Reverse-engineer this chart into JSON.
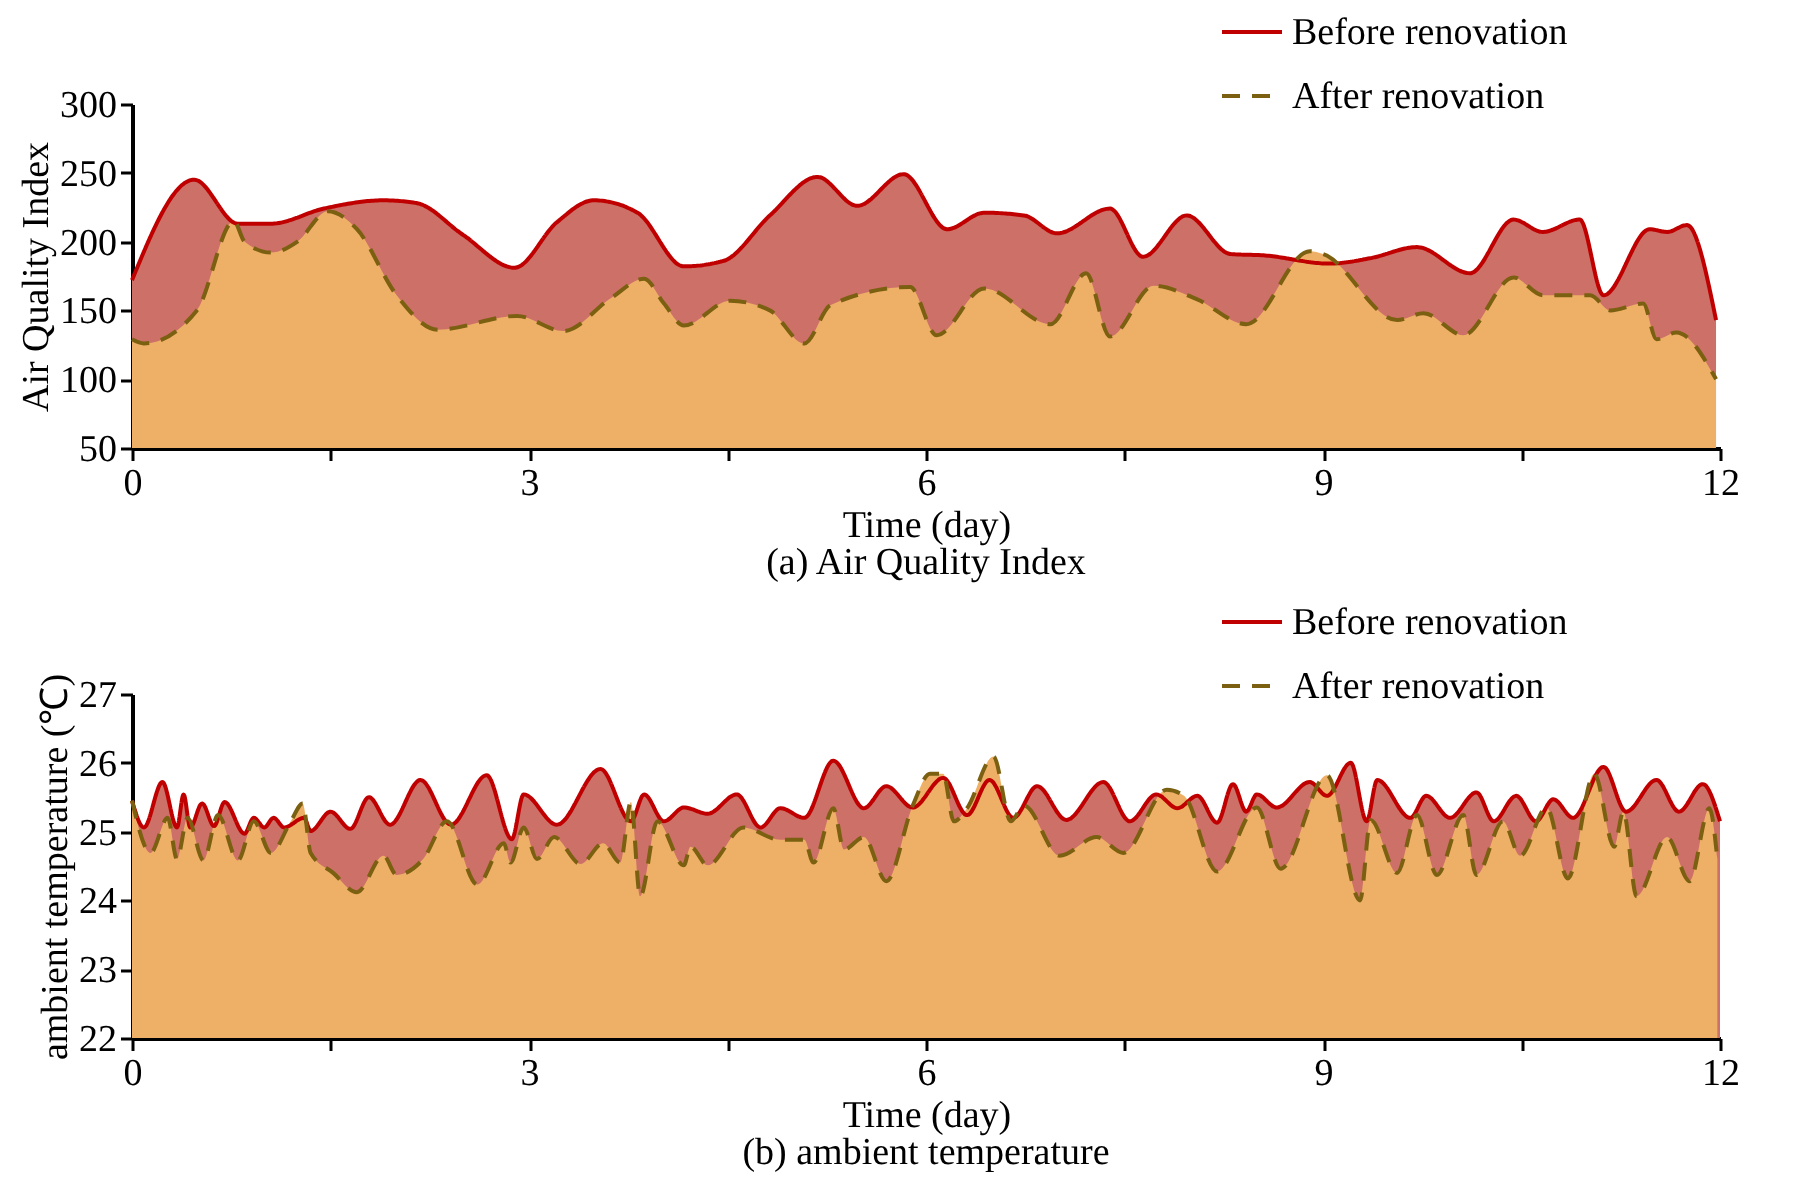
{
  "chart_data": [
    {
      "type": "area",
      "title": "(a) Air Quality Index",
      "xlabel": "Time (day)",
      "ylabel": "Air Quality Index",
      "xlim": [
        0,
        12
      ],
      "xticks": [
        0,
        {
          "value": 1.5,
          "label": null
        },
        3,
        {
          "value": 4.5,
          "label": null
        },
        6,
        {
          "value": 7.5,
          "label": null
        },
        9,
        {
          "value": 10.5,
          "label": null
        },
        12
      ],
      "ylim": [
        50,
        300
      ],
      "yticks": [
        50,
        100,
        150,
        200,
        250,
        300
      ],
      "grid": false,
      "legend": "top right",
      "series": [
        {
          "name": "Before renovation",
          "color": "#c00000",
          "line_style": "solid",
          "x": [
            0,
            0.47,
            0.8,
            1.05,
            1.45,
            1.9,
            2.15,
            2.5,
            2.89,
            3.21,
            3.49,
            3.82,
            4.17,
            4.47,
            4.82,
            5.18,
            5.48,
            5.83,
            6.16,
            6.44,
            6.74,
            6.99,
            7.39,
            7.64,
            7.97,
            8.3,
            8.55,
            9.05,
            9.36,
            9.71,
            10.11,
            10.44,
            10.66,
            10.94,
            11.12,
            11.47,
            11.6,
            11.75,
            11.97
          ],
          "values": [
            172,
            245,
            213,
            213,
            224,
            230,
            228,
            205,
            181,
            214,
            230,
            221,
            182,
            186,
            219,
            247,
            226,
            249,
            209,
            221,
            219,
            206,
            224,
            189,
            219,
            191,
            190,
            184,
            188,
            196,
            177,
            216,
            207,
            216,
            161,
            209,
            207,
            212,
            143
          ]
        },
        {
          "name": "After renovation",
          "color": "#7a6010",
          "line_style": "dashed",
          "x": [
            0,
            0.09,
            0.49,
            0.77,
            0.85,
            1.05,
            1.25,
            1.48,
            1.7,
            2.0,
            2.31,
            2.91,
            3.26,
            3.62,
            3.87,
            4.02,
            4.17,
            4.52,
            4.82,
            5.08,
            5.28,
            5.88,
            6.08,
            6.44,
            6.94,
            7.21,
            7.39,
            7.72,
            8.05,
            8.42,
            8.9,
            9.0,
            9.56,
            9.76,
            10.06,
            10.44,
            10.66,
            11.02,
            11.17,
            11.42,
            11.52,
            11.67,
            11.97
          ],
          "values": [
            129,
            126,
            150,
            215,
            200,
            192,
            200,
            222,
            209,
            161,
            136,
            146,
            135,
            159,
            173,
            155,
            139,
            157,
            150,
            126,
            154,
            167,
            132,
            166,
            140,
            177,
            131,
            168,
            158,
            140,
            193,
            191,
            143,
            148,
            132,
            174,
            161,
            161,
            150,
            155,
            129,
            134,
            100
          ]
        }
      ]
    },
    {
      "type": "area",
      "title": "(b) ambient temperature",
      "xlabel": "Time (day)",
      "ylabel": "ambient temperature (℃)",
      "xlim": [
        0,
        12
      ],
      "xticks": [
        0,
        {
          "value": 1.5,
          "label": null
        },
        3,
        {
          "value": 4.5,
          "label": null
        },
        6,
        {
          "value": 7.5,
          "label": null
        },
        9,
        {
          "value": 10.5,
          "label": null
        },
        12
      ],
      "ylim": [
        22,
        27
      ],
      "yticks": [
        22,
        23,
        24,
        25,
        26,
        27
      ],
      "grid": false,
      "legend": "top right",
      "series": [
        {
          "name": "Before renovation",
          "color": "#c00000",
          "line_style": "solid",
          "x": [
            0,
            0.09,
            0.23,
            0.34,
            0.39,
            0.44,
            0.53,
            0.62,
            0.7,
            0.85,
            0.92,
            1.0,
            1.07,
            1.15,
            1.3,
            1.35,
            1.5,
            1.65,
            1.79,
            1.95,
            2.18,
            2.41,
            2.68,
            2.87,
            2.96,
            3.21,
            3.54,
            3.77,
            3.87,
            4.02,
            4.17,
            4.35,
            4.57,
            4.75,
            4.9,
            5.08,
            5.3,
            5.53,
            5.7,
            5.9,
            6.13,
            6.31,
            6.48,
            6.66,
            6.84,
            7.06,
            7.34,
            7.54,
            7.74,
            7.9,
            8.05,
            8.2,
            8.32,
            8.42,
            8.5,
            8.65,
            8.9,
            9.03,
            9.21,
            9.33,
            9.41,
            9.66,
            9.78,
            9.96,
            10.16,
            10.29,
            10.46,
            10.61,
            10.74,
            10.89,
            11.12,
            11.29,
            11.52,
            11.69,
            11.87,
            12
          ],
          "values": [
            25.45,
            25.06,
            25.72,
            25.06,
            25.54,
            25.06,
            25.41,
            25.08,
            25.43,
            24.97,
            25.2,
            25.06,
            25.2,
            25.06,
            25.2,
            25.01,
            25.29,
            25.04,
            25.5,
            25.1,
            25.75,
            25.1,
            25.82,
            24.89,
            25.54,
            25.1,
            25.91,
            25.15,
            25.54,
            25.15,
            25.35,
            25.26,
            25.54,
            25.06,
            25.34,
            25.2,
            26.03,
            25.34,
            25.66,
            25.35,
            25.78,
            25.24,
            25.75,
            25.2,
            25.66,
            25.17,
            25.72,
            25.15,
            25.54,
            25.34,
            25.52,
            25.13,
            25.69,
            25.29,
            25.54,
            25.35,
            25.72,
            25.52,
            26.0,
            25.15,
            25.75,
            25.2,
            25.52,
            25.2,
            25.57,
            25.15,
            25.52,
            25.15,
            25.47,
            25.2,
            25.94,
            25.29,
            25.75,
            25.29,
            25.69,
            25.15
          ]
        },
        {
          "name": "After renovation",
          "color": "#7a6010",
          "line_style": "dashed",
          "x": [
            0,
            0.14,
            0.27,
            0.34,
            0.42,
            0.54,
            0.65,
            0.8,
            0.92,
            1.05,
            1.2,
            1.29,
            1.35,
            1.52,
            1.7,
            1.9,
            2.0,
            2.2,
            2.38,
            2.61,
            2.81,
            2.86,
            2.96,
            3.06,
            3.19,
            3.39,
            3.56,
            3.69,
            3.77,
            3.84,
            3.97,
            4.17,
            4.22,
            4.35,
            4.62,
            4.9,
            5.08,
            5.15,
            5.3,
            5.38,
            5.53,
            5.7,
            5.9,
            6.03,
            6.13,
            6.21,
            6.31,
            6.51,
            6.64,
            6.74,
            7.01,
            7.29,
            7.49,
            7.82,
            7.95,
            8.2,
            8.5,
            8.68,
            9.03,
            9.28,
            9.36,
            9.56,
            9.71,
            9.86,
            10.06,
            10.16,
            10.36,
            10.49,
            10.69,
            10.85,
            11.05,
            11.2,
            11.27,
            11.37,
            11.6,
            11.77,
            11.92,
            11.98
          ],
          "values": [
            25.45,
            24.69,
            25.2,
            24.6,
            25.2,
            24.58,
            25.24,
            24.58,
            25.15,
            24.69,
            25.15,
            25.41,
            24.69,
            24.4,
            24.12,
            24.65,
            24.37,
            24.6,
            25.15,
            24.23,
            24.83,
            24.55,
            25.06,
            24.6,
            24.92,
            24.53,
            24.83,
            24.55,
            25.43,
            24.06,
            25.15,
            24.51,
            24.78,
            24.51,
            25.06,
            24.88,
            24.88,
            24.55,
            25.34,
            24.74,
            24.92,
            24.28,
            25.38,
            25.84,
            25.84,
            25.15,
            25.34,
            26.09,
            25.15,
            25.38,
            24.65,
            24.92,
            24.69,
            25.61,
            25.52,
            24.42,
            25.35,
            24.46,
            25.82,
            24.0,
            25.17,
            24.4,
            25.24,
            24.37,
            25.24,
            24.37,
            25.15,
            24.65,
            25.35,
            24.32,
            25.84,
            24.78,
            25.29,
            24.06,
            24.92,
            24.28,
            25.34,
            24.6
          ]
        }
      ]
    }
  ]
}
